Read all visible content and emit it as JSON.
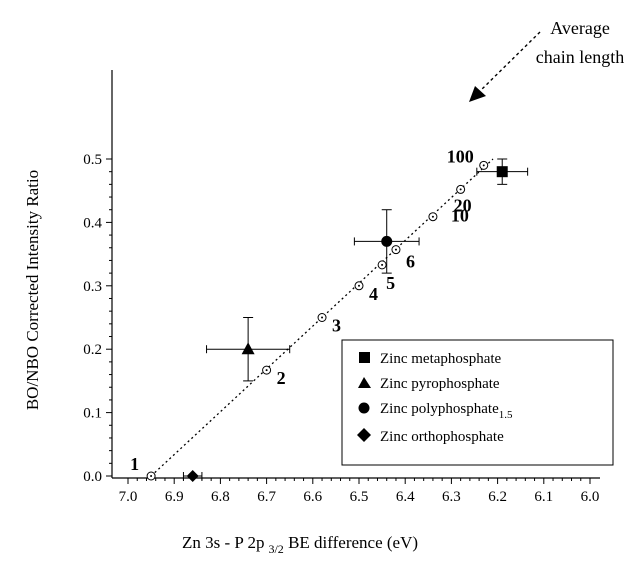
{
  "chart_data": {
    "type": "scatter",
    "xlabel": "Zn 3s - P 2p",
    "xlabel_sub": "3/2",
    "xlabel_tail": " BE difference (eV)",
    "ylabel": "BO/NBO Corrected Intensity Ratio",
    "xlim": [
      7.0,
      6.0
    ],
    "ylim": [
      0.0,
      0.5
    ],
    "x_reversed": true,
    "x_ticks": [
      7.0,
      6.9,
      6.8,
      6.7,
      6.6,
      6.5,
      6.4,
      6.3,
      6.2,
      6.1,
      6.0
    ],
    "y_ticks": [
      0.0,
      0.1,
      0.2,
      0.3,
      0.4,
      0.5
    ],
    "x_tick_labels": [
      "7.0",
      "6.9",
      "6.8",
      "6.7",
      "6.6",
      "6.5",
      "6.4",
      "6.3",
      "6.2",
      "6.1",
      "6.0"
    ],
    "y_tick_labels": [
      "0.0",
      "0.1",
      "0.2",
      "0.3",
      "0.4",
      "0.5"
    ],
    "chain_line": {
      "label": "Average chain length",
      "label_line1": "Average",
      "label_line2": "chain length",
      "points": [
        {
          "n": "1",
          "x": 6.95,
          "y": 0.0
        },
        {
          "n": "2",
          "x": 6.7,
          "y": 0.167
        },
        {
          "n": "3",
          "x": 6.58,
          "y": 0.25
        },
        {
          "n": "4",
          "x": 6.5,
          "y": 0.3
        },
        {
          "n": "5",
          "x": 6.45,
          "y": 0.333
        },
        {
          "n": "6",
          "x": 6.42,
          "y": 0.357
        },
        {
          "n": "10",
          "x": 6.34,
          "y": 0.409
        },
        {
          "n": "20",
          "x": 6.28,
          "y": 0.452
        },
        {
          "n": "100",
          "x": 6.23,
          "y": 0.49
        }
      ]
    },
    "series": [
      {
        "name": "Zinc metaphosphate",
        "marker": "square",
        "x": 6.19,
        "y": 0.48,
        "xerr": 0.055,
        "yerr": 0.02
      },
      {
        "name": "Zinc pyrophosphate",
        "marker": "triangle",
        "x": 6.74,
        "y": 0.2,
        "xerr": 0.09,
        "yerr": 0.05
      },
      {
        "name": "Zinc polyphosphate",
        "name_sub": "1.5",
        "marker": "circle",
        "x": 6.44,
        "y": 0.37,
        "xerr": 0.07,
        "yerr": 0.05
      },
      {
        "name": "Zinc orthophosphate",
        "marker": "diamond",
        "x": 6.86,
        "y": 0.0,
        "xerr": 0.02,
        "yerr": 0.0
      }
    ],
    "legend_position": "bottom-right",
    "grid": false
  }
}
